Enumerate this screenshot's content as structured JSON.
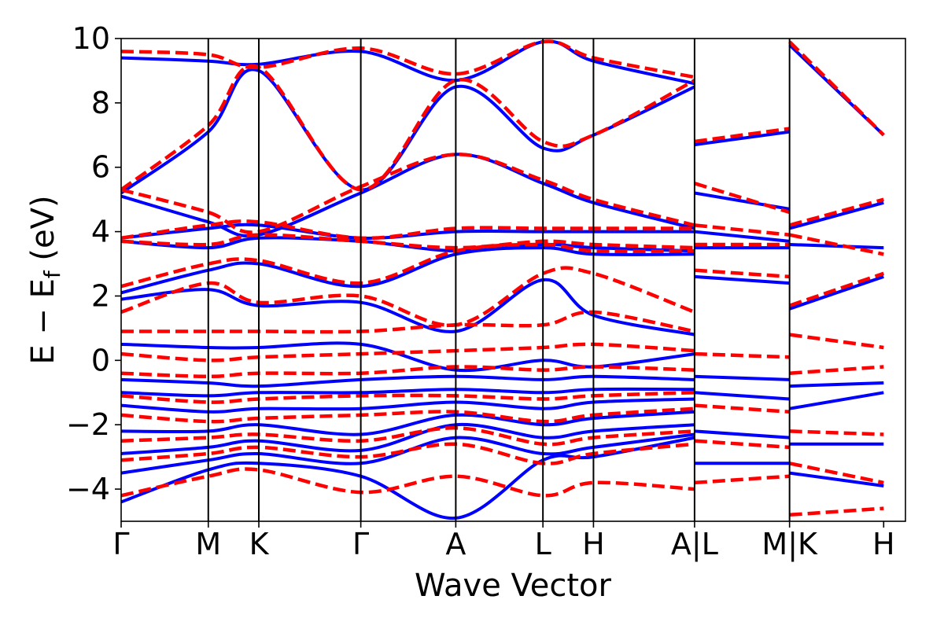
{
  "chart_data": {
    "type": "line",
    "title": "",
    "xlabel": "Wave Vector",
    "ylabel_main": "E − E",
    "ylabel_sub": "f",
    "ylabel_unit": " (eV)",
    "ylim": [
      -5,
      10
    ],
    "yticks": [
      -4,
      -2,
      0,
      2,
      4,
      6,
      8,
      10
    ],
    "ytick_labels": [
      "−4",
      "−2",
      "0",
      "2",
      "4",
      "6",
      "8",
      "10"
    ],
    "xlim": [
      0,
      9.0
    ],
    "kpath": [
      {
        "label": "Γ",
        "x": 0.0
      },
      {
        "label": "M",
        "x": 1.0
      },
      {
        "label": "K",
        "x": 1.58
      },
      {
        "label": "Γ",
        "x": 2.75
      },
      {
        "label": "A",
        "x": 3.84
      },
      {
        "label": "L",
        "x": 4.84
      },
      {
        "label": "H",
        "x": 5.42
      },
      {
        "label": "A|L",
        "x": 6.58
      },
      {
        "label": "M|K",
        "x": 7.67
      },
      {
        "label": "H",
        "x": 8.75
      }
    ],
    "segments": [
      [
        0,
        3.84
      ],
      [
        3.84,
        6.58
      ],
      [
        6.58,
        7.67
      ],
      [
        7.67,
        8.75
      ]
    ],
    "legend": "none",
    "series": [
      {
        "name": "blue (solid)",
        "color": "#0000ff",
        "style": "solid",
        "bands": [
          {
            "x": [
              0,
              1.0,
              1.58,
              2.75,
              3.84,
              4.84,
              5.42,
              6.58
            ],
            "y": [
              -4.4,
              -3.4,
              -3.2,
              -3.6,
              -4.9,
              -3.1,
              -3.0,
              -2.4
            ]
          },
          {
            "x": [
              0,
              1.0,
              1.58,
              2.75,
              3.84,
              4.84,
              5.42,
              6.58
            ],
            "y": [
              -3.5,
              -3.1,
              -2.9,
              -3.2,
              -2.4,
              -2.9,
              -2.7,
              -2.3
            ]
          },
          {
            "x": [
              0,
              1.0,
              1.58,
              2.75,
              3.84,
              4.84,
              5.42,
              6.58
            ],
            "y": [
              -2.9,
              -2.7,
              -2.5,
              -2.8,
              -2.0,
              -2.4,
              -2.2,
              -2.0
            ]
          },
          {
            "x": [
              0,
              1.0,
              1.58,
              2.75,
              3.84,
              4.84,
              5.42,
              6.58
            ],
            "y": [
              -2.2,
              -2.2,
              -2.0,
              -2.3,
              -1.7,
              -2.0,
              -1.8,
              -1.6
            ]
          },
          {
            "x": [
              0,
              1.0,
              1.58,
              2.75,
              3.84,
              4.84,
              5.42,
              6.58
            ],
            "y": [
              -1.4,
              -1.6,
              -1.5,
              -1.5,
              -1.3,
              -1.5,
              -1.3,
              -1.2
            ]
          },
          {
            "x": [
              0,
              1.0,
              1.58,
              2.75,
              3.84,
              4.84,
              5.42,
              6.58
            ],
            "y": [
              -1.0,
              -1.1,
              -1.0,
              -1.0,
              -0.9,
              -1.0,
              -0.9,
              -0.9
            ]
          },
          {
            "x": [
              0,
              1.0,
              1.58,
              2.75,
              3.84,
              4.84,
              5.42,
              6.58
            ],
            "y": [
              -0.6,
              -0.7,
              -0.8,
              -0.6,
              -0.5,
              -0.6,
              -0.5,
              -0.6
            ]
          },
          {
            "x": [
              0,
              1.0,
              1.58,
              2.75,
              3.84,
              4.84,
              5.42,
              6.58
            ],
            "y": [
              0.5,
              0.4,
              0.4,
              0.5,
              -0.3,
              0.0,
              -0.2,
              0.2
            ]
          },
          {
            "x": [
              0,
              1.0,
              1.58,
              2.75,
              3.84,
              4.84,
              5.42,
              6.58
            ],
            "y": [
              1.9,
              2.2,
              1.7,
              1.8,
              0.9,
              2.5,
              1.4,
              0.8
            ]
          },
          {
            "x": [
              0,
              1.0,
              1.58,
              2.75,
              3.84,
              4.84,
              5.42,
              6.58
            ],
            "y": [
              2.1,
              2.8,
              3.0,
              2.3,
              3.3,
              3.5,
              3.3,
              3.3
            ]
          },
          {
            "x": [
              0,
              1.0,
              1.58,
              2.75,
              3.84,
              4.84,
              5.42,
              6.58
            ],
            "y": [
              3.7,
              3.5,
              3.8,
              3.7,
              3.4,
              3.6,
              3.5,
              3.4
            ]
          },
          {
            "x": [
              0,
              1.0,
              1.58,
              2.75,
              3.84,
              4.84,
              5.42,
              6.58
            ],
            "y": [
              3.8,
              4.1,
              4.2,
              3.8,
              4.0,
              4.0,
              4.0,
              4.0
            ]
          },
          {
            "x": [
              0,
              1.0,
              1.58,
              2.75,
              3.84,
              4.84,
              5.42,
              6.58
            ],
            "y": [
              5.1,
              4.3,
              3.9,
              5.2,
              6.4,
              5.5,
              4.9,
              4.1
            ]
          },
          {
            "x": [
              0,
              1.0,
              1.58,
              2.75,
              3.84,
              4.84,
              5.42,
              6.58
            ],
            "y": [
              5.2,
              7.1,
              9.0,
              5.3,
              8.5,
              6.6,
              7.0,
              8.5
            ]
          },
          {
            "x": [
              0,
              1.0,
              1.58,
              2.75,
              3.84,
              4.84,
              5.42,
              6.58
            ],
            "y": [
              9.4,
              9.3,
              9.2,
              9.6,
              8.7,
              9.9,
              9.3,
              8.6
            ]
          },
          {
            "x": [
              6.58,
              7.67
            ],
            "y": [
              -3.2,
              -3.2
            ]
          },
          {
            "x": [
              6.58,
              7.67
            ],
            "y": [
              -2.2,
              -2.4
            ]
          },
          {
            "x": [
              6.58,
              7.67
            ],
            "y": [
              -1.0,
              -1.2
            ]
          },
          {
            "x": [
              6.58,
              7.67
            ],
            "y": [
              -0.5,
              -0.6
            ]
          },
          {
            "x": [
              6.58,
              7.67
            ],
            "y": [
              2.6,
              2.4
            ]
          },
          {
            "x": [
              6.58,
              7.67
            ],
            "y": [
              3.5,
              3.5
            ]
          },
          {
            "x": [
              6.58,
              7.67
            ],
            "y": [
              4.0,
              3.7
            ]
          },
          {
            "x": [
              6.58,
              7.67
            ],
            "y": [
              5.2,
              4.7
            ]
          },
          {
            "x": [
              6.58,
              7.67
            ],
            "y": [
              6.7,
              7.1
            ]
          },
          {
            "x": [
              7.67,
              8.75
            ],
            "y": [
              -3.5,
              -3.9
            ]
          },
          {
            "x": [
              7.67,
              8.75
            ],
            "y": [
              -2.6,
              -2.6
            ]
          },
          {
            "x": [
              7.67,
              8.75
            ],
            "y": [
              -1.5,
              -1.0
            ]
          },
          {
            "x": [
              7.67,
              8.75
            ],
            "y": [
              -0.8,
              -0.7
            ]
          },
          {
            "x": [
              7.67,
              8.75
            ],
            "y": [
              1.6,
              2.6
            ]
          },
          {
            "x": [
              7.67,
              8.75
            ],
            "y": [
              3.6,
              3.5
            ]
          },
          {
            "x": [
              7.67,
              8.75
            ],
            "y": [
              4.1,
              4.9
            ]
          },
          {
            "x": [
              7.67,
              8.75
            ],
            "y": [
              9.8,
              7.0
            ]
          }
        ]
      },
      {
        "name": "red (dashed)",
        "color": "#ff0000",
        "style": "dashed",
        "bands": [
          {
            "x": [
              0,
              1.0,
              1.58,
              2.75,
              3.84,
              4.84,
              5.42,
              6.58
            ],
            "y": [
              -4.2,
              -3.6,
              -3.4,
              -4.1,
              -3.6,
              -4.2,
              -3.8,
              -4.0
            ]
          },
          {
            "x": [
              0,
              1.0,
              1.58,
              2.75,
              3.84,
              4.84,
              5.42,
              6.58
            ],
            "y": [
              -3.1,
              -2.9,
              -2.7,
              -3.0,
              -2.6,
              -3.2,
              -2.9,
              -2.6
            ]
          },
          {
            "x": [
              0,
              1.0,
              1.58,
              2.75,
              3.84,
              4.84,
              5.42,
              6.58
            ],
            "y": [
              -2.5,
              -2.4,
              -2.3,
              -2.5,
              -2.1,
              -2.6,
              -2.4,
              -2.2
            ]
          },
          {
            "x": [
              0,
              1.0,
              1.58,
              2.75,
              3.84,
              4.84,
              5.42,
              6.58
            ],
            "y": [
              -1.7,
              -1.9,
              -1.8,
              -1.7,
              -1.6,
              -1.9,
              -1.7,
              -1.5
            ]
          },
          {
            "x": [
              0,
              1.0,
              1.58,
              2.75,
              3.84,
              4.84,
              5.42,
              6.58
            ],
            "y": [
              -1.1,
              -1.3,
              -1.2,
              -1.1,
              -1.1,
              -1.2,
              -1.1,
              -1.0
            ]
          },
          {
            "x": [
              0,
              1.0,
              1.58,
              2.75,
              3.84,
              4.84,
              5.42,
              6.58
            ],
            "y": [
              -0.4,
              -0.5,
              -0.4,
              -0.4,
              -0.2,
              -0.3,
              -0.2,
              -0.3
            ]
          },
          {
            "x": [
              0,
              1.0,
              1.58,
              2.75,
              3.84,
              4.84,
              5.42,
              6.58
            ],
            "y": [
              0.2,
              0.0,
              0.1,
              0.2,
              0.3,
              0.4,
              0.5,
              0.3
            ]
          },
          {
            "x": [
              0,
              1.0,
              1.58,
              2.75,
              3.84,
              4.84,
              5.42,
              6.58
            ],
            "y": [
              0.9,
              0.9,
              0.9,
              0.9,
              1.1,
              1.1,
              1.5,
              0.9
            ]
          },
          {
            "x": [
              0,
              1.0,
              1.58,
              2.75,
              3.84,
              4.84,
              5.42,
              6.58
            ],
            "y": [
              1.5,
              2.4,
              1.8,
              2.0,
              1.1,
              2.7,
              2.7,
              1.5
            ]
          },
          {
            "x": [
              0,
              1.0,
              1.58,
              2.75,
              3.84,
              4.84,
              5.42,
              6.58
            ],
            "y": [
              2.3,
              3.0,
              3.1,
              2.4,
              3.4,
              3.6,
              3.4,
              3.4
            ]
          },
          {
            "x": [
              0,
              1.0,
              1.58,
              2.75,
              3.84,
              4.84,
              5.42,
              6.58
            ],
            "y": [
              3.7,
              3.6,
              3.9,
              3.7,
              3.5,
              3.7,
              3.6,
              3.5
            ]
          },
          {
            "x": [
              0,
              1.0,
              1.58,
              2.75,
              3.84,
              4.84,
              5.42,
              6.58
            ],
            "y": [
              3.8,
              4.2,
              4.3,
              3.8,
              4.1,
              4.1,
              4.1,
              4.1
            ]
          },
          {
            "x": [
              0,
              1.0,
              1.58,
              2.75,
              3.84,
              4.84,
              5.42,
              6.58
            ],
            "y": [
              5.3,
              4.6,
              4.0,
              5.4,
              6.4,
              5.6,
              5.0,
              4.2
            ]
          },
          {
            "x": [
              0,
              1.0,
              1.58,
              2.75,
              3.84,
              4.84,
              5.42,
              6.58
            ],
            "y": [
              5.3,
              7.3,
              9.1,
              5.3,
              8.7,
              6.8,
              7.0,
              8.7
            ]
          },
          {
            "x": [
              0,
              1.0,
              1.58,
              2.75,
              3.84,
              4.84,
              5.42,
              6.58
            ],
            "y": [
              9.6,
              9.5,
              9.1,
              9.7,
              8.9,
              9.9,
              9.4,
              8.8
            ]
          },
          {
            "x": [
              6.58,
              7.67
            ],
            "y": [
              -3.8,
              -3.6
            ]
          },
          {
            "x": [
              6.58,
              7.67
            ],
            "y": [
              -2.5,
              -2.7
            ]
          },
          {
            "x": [
              6.58,
              7.67
            ],
            "y": [
              -1.4,
              -1.6
            ]
          },
          {
            "x": [
              6.58,
              7.67
            ],
            "y": [
              0.2,
              0.1
            ]
          },
          {
            "x": [
              6.58,
              7.67
            ],
            "y": [
              2.8,
              2.6
            ]
          },
          {
            "x": [
              6.58,
              7.67
            ],
            "y": [
              3.6,
              3.6
            ]
          },
          {
            "x": [
              6.58,
              7.67
            ],
            "y": [
              4.2,
              3.9
            ]
          },
          {
            "x": [
              6.58,
              7.67
            ],
            "y": [
              5.5,
              4.6
            ]
          },
          {
            "x": [
              6.58,
              7.67
            ],
            "y": [
              6.8,
              7.2
            ]
          },
          {
            "x": [
              7.67,
              8.75
            ],
            "y": [
              -4.8,
              -4.6
            ]
          },
          {
            "x": [
              7.67,
              8.75
            ],
            "y": [
              -3.2,
              -3.8
            ]
          },
          {
            "x": [
              7.67,
              8.75
            ],
            "y": [
              -2.2,
              -2.3
            ]
          },
          {
            "x": [
              7.67,
              8.75
            ],
            "y": [
              -0.4,
              -0.2
            ]
          },
          {
            "x": [
              7.67,
              8.75
            ],
            "y": [
              0.8,
              0.4
            ]
          },
          {
            "x": [
              7.67,
              8.75
            ],
            "y": [
              1.7,
              2.7
            ]
          },
          {
            "x": [
              7.67,
              8.75
            ],
            "y": [
              3.9,
              3.3
            ]
          },
          {
            "x": [
              7.67,
              8.75
            ],
            "y": [
              4.2,
              5.0
            ]
          },
          {
            "x": [
              7.67,
              8.75
            ],
            "y": [
              9.9,
              7.0
            ]
          }
        ]
      }
    ]
  }
}
